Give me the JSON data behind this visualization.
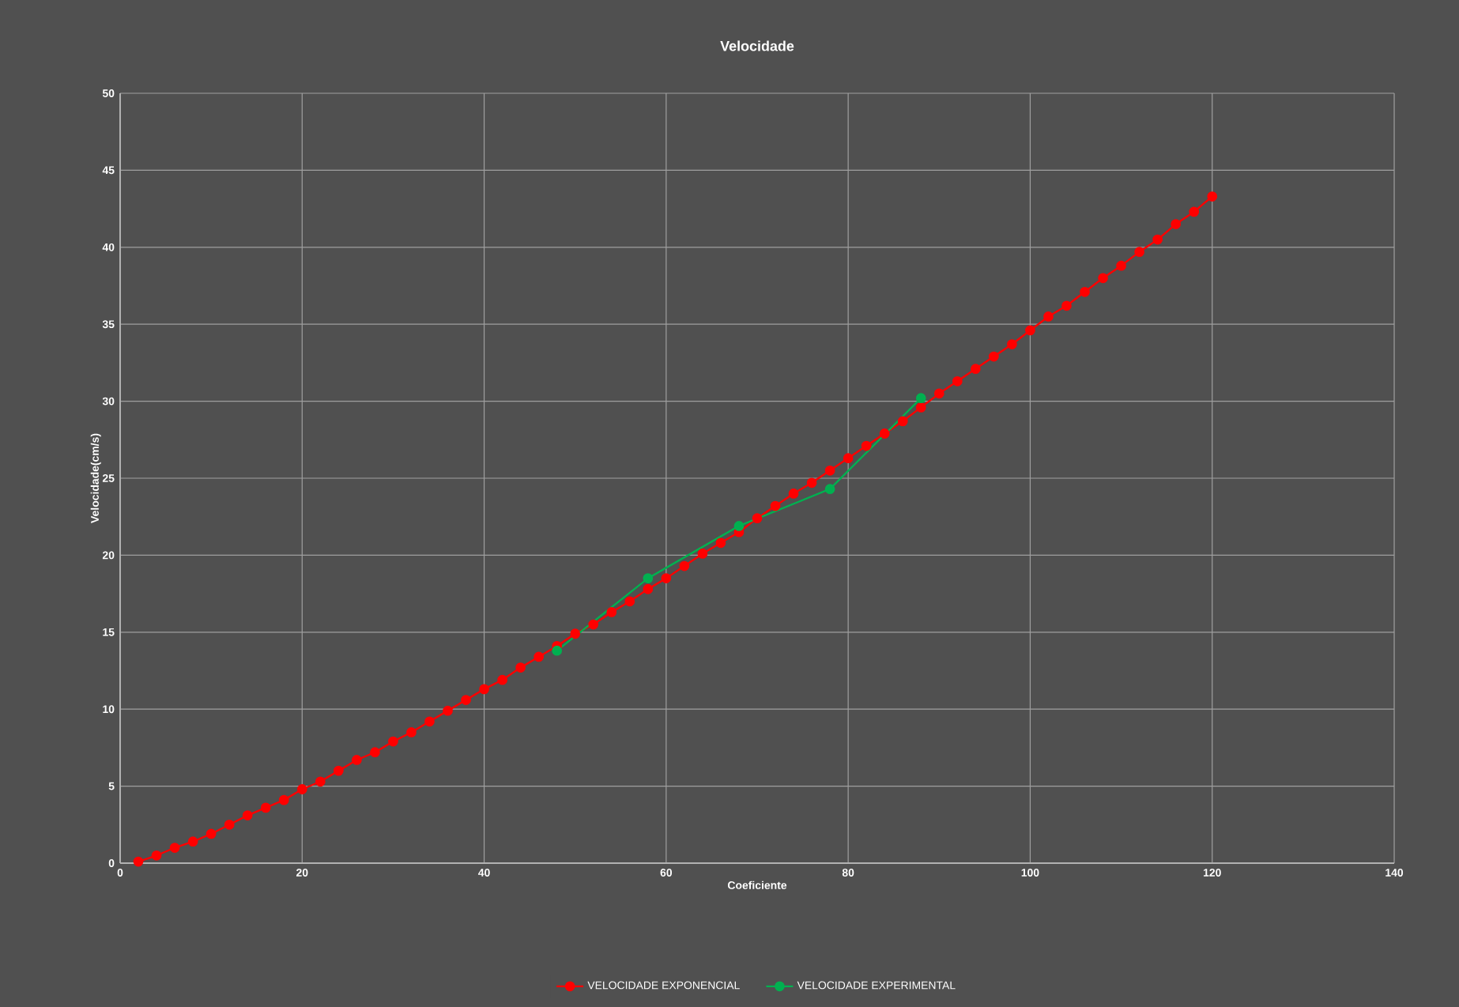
{
  "chart_data": {
    "type": "line",
    "title": "Velocidade",
    "xlabel": "Coeficiente",
    "ylabel": "Velocidade(cm/s)",
    "xlim": [
      0,
      140
    ],
    "xticks": [
      0,
      20,
      40,
      60,
      80,
      100,
      120,
      140
    ],
    "ylim": [
      0,
      50
    ],
    "yticks": [
      0,
      5,
      10,
      15,
      20,
      25,
      30,
      35,
      40,
      45,
      50
    ],
    "grid": true,
    "legend": "bottom",
    "marker": "circle",
    "line_style": "solid",
    "series": [
      {
        "name": "VELOCIDADE EXPONENCIAL",
        "color": "#ff0000",
        "x": [
          2,
          4,
          6,
          8,
          10,
          12,
          14,
          16,
          18,
          20,
          22,
          24,
          26,
          28,
          30,
          32,
          34,
          36,
          38,
          40,
          42,
          44,
          46,
          48,
          50,
          52,
          54,
          56,
          58,
          60,
          62,
          64,
          66,
          68,
          70,
          72,
          74,
          76,
          78,
          80,
          82,
          84,
          86,
          88,
          90,
          92,
          94,
          96,
          98,
          100,
          102,
          104,
          106,
          108,
          110,
          112,
          114,
          116,
          118,
          120
        ],
        "values": [
          0.1,
          0.5,
          1.0,
          1.4,
          1.9,
          2.5,
          3.1,
          3.6,
          4.1,
          4.8,
          5.3,
          6.0,
          6.7,
          7.2,
          7.9,
          8.5,
          9.2,
          9.9,
          10.6,
          11.3,
          11.9,
          12.7,
          13.4,
          14.1,
          14.9,
          15.5,
          16.3,
          17.0,
          17.8,
          18.5,
          19.3,
          20.1,
          20.8,
          21.5,
          22.4,
          23.2,
          24.0,
          24.7,
          25.5,
          26.3,
          27.1,
          27.9,
          28.7,
          29.6,
          30.5,
          31.3,
          32.1,
          32.9,
          33.7,
          34.6,
          35.5,
          36.2,
          37.1,
          38.0,
          38.8,
          39.7,
          40.5,
          41.5,
          42.3,
          43.3
        ]
      },
      {
        "name": "VELOCIDADE EXPERIMENTAL",
        "color": "#00b050",
        "x": [
          48,
          58,
          68,
          78,
          88
        ],
        "values": [
          13.8,
          18.5,
          21.9,
          24.3,
          30.2
        ]
      }
    ]
  }
}
